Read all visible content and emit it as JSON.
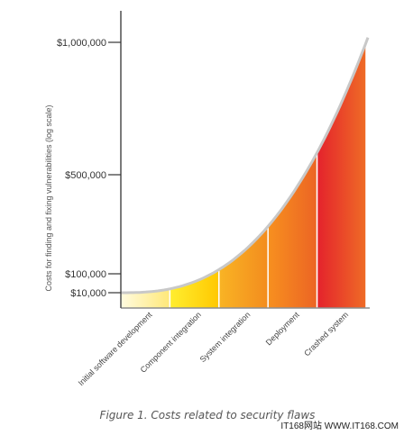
{
  "chart_data": {
    "type": "area",
    "categories": [
      "Initial software development",
      "Component integration",
      "System integration",
      "Deployment",
      "Crashed system"
    ],
    "values": [
      10000,
      50000,
      210000,
      580000,
      960000
    ],
    "ylabel": "Costs for finding and fixing vulnerabilities (log scale)",
    "yticks": [
      {
        "value": 10000,
        "label": "$10,000"
      },
      {
        "value": 100000,
        "label": "$100,000"
      },
      {
        "value": 500000,
        "label": "$500,000"
      },
      {
        "value": 1000000,
        "label": "$1,000,000"
      }
    ],
    "ylim": [
      0,
      1000000
    ],
    "colors": [
      "#fff0a0",
      "#ffd800",
      "#f5a020",
      "#ef7a22",
      "#e12a26"
    ],
    "grid": false,
    "legend": "none"
  },
  "caption": "Figure 1. Costs related to security flaws",
  "watermark": "IT168网站 WWW.IT168.COM"
}
